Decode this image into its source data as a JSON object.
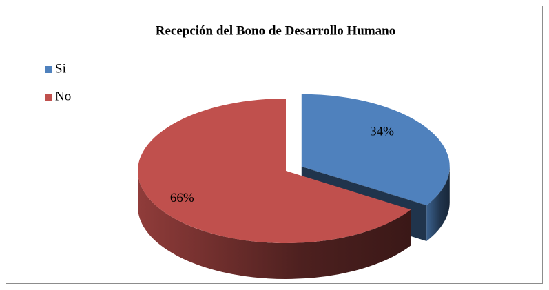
{
  "chart_data": {
    "type": "pie",
    "title": "Recepción del Bono de Desarrollo Humano",
    "categories": [
      "Si",
      "No"
    ],
    "values": [
      34,
      66
    ],
    "value_labels": [
      "34%",
      "66%"
    ],
    "colors": [
      "#4f81bd",
      "#c0504d"
    ],
    "legend": "left"
  }
}
